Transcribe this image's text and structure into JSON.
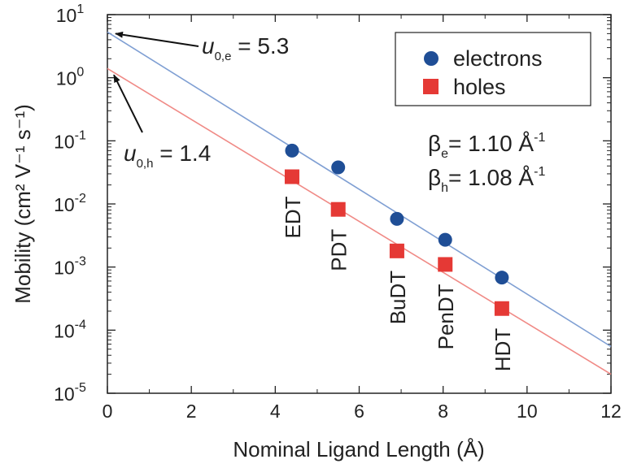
{
  "chart_data": {
    "type": "scatter",
    "xlabel": "Nominal Ligand Length (Å)",
    "ylabel": "Mobility (cm² V⁻¹ s⁻¹)",
    "xlim": [
      0,
      12
    ],
    "ylim": [
      1e-05,
      10
    ],
    "y_scale": "log",
    "x_ticks": [
      "0",
      "2",
      "4",
      "6",
      "8",
      "10",
      "12"
    ],
    "y_ticks": [
      {
        "base": "10",
        "exp": "-5"
      },
      {
        "base": "10",
        "exp": "-4"
      },
      {
        "base": "10",
        "exp": "-3"
      },
      {
        "base": "10",
        "exp": "-2"
      },
      {
        "base": "10",
        "exp": "-1"
      },
      {
        "base": "10",
        "exp": "0"
      },
      {
        "base": "10",
        "exp": "1"
      }
    ],
    "legend_position": "top-right",
    "series": [
      {
        "name": "electrons",
        "marker": "circle",
        "color": "#1f4e96",
        "line_color": "#7f9fd3",
        "x": [
          4.4,
          5.5,
          6.9,
          8.05,
          9.4
        ],
        "y": [
          0.07,
          0.038,
          0.0058,
          0.0027,
          0.00068
        ],
        "fit": {
          "x": [
            0,
            12
          ],
          "y": [
            5.3,
            5.5e-05
          ]
        }
      },
      {
        "name": "holes",
        "marker": "square",
        "color": "#e53935",
        "line_color": "#f08a86",
        "x": [
          4.4,
          5.5,
          6.9,
          8.05,
          9.4
        ],
        "y": [
          0.027,
          0.0082,
          0.0018,
          0.0011,
          0.00022
        ],
        "fit": {
          "x": [
            0,
            12
          ],
          "y": [
            1.4,
            2e-05
          ]
        }
      }
    ],
    "point_labels": [
      {
        "text": "EDT",
        "x": 4.4
      },
      {
        "text": "PDT",
        "x": 5.5
      },
      {
        "text": "BuDT",
        "x": 6.9
      },
      {
        "text": "PenDT",
        "x": 8.05
      },
      {
        "text": "HDT",
        "x": 9.4
      }
    ],
    "annotations": {
      "u_e": {
        "symbol": "u",
        "sub": "0,e",
        "text": " = 5.3",
        "x": 0,
        "y": 5.3
      },
      "u_h": {
        "symbol": "u",
        "sub": "0,h",
        "text": " = 1.4",
        "x": 0,
        "y": 1.4
      },
      "beta_e": {
        "symbol": "β",
        "sub": "e",
        "text": "= 1.10 Å",
        "sup": "-1"
      },
      "beta_h": {
        "symbol": "β",
        "sub": "h",
        "text": "= 1.08 Å",
        "sup": "-1"
      }
    }
  }
}
